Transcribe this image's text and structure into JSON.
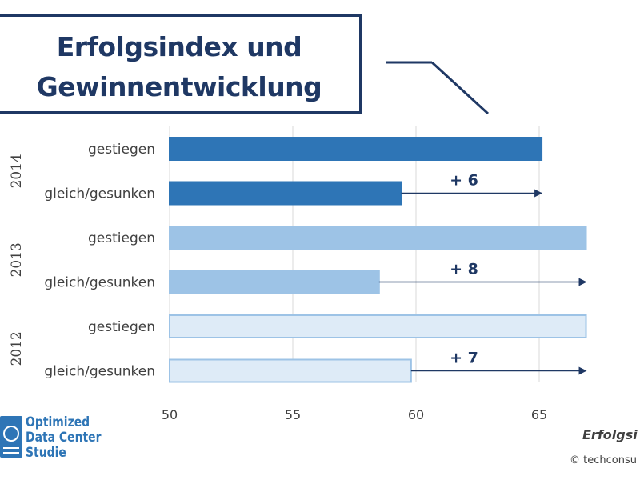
{
  "title": {
    "line1": "Erfolgsindex und",
    "line2": "Gewinnentwicklung"
  },
  "chart_data": {
    "type": "bar",
    "orientation": "horizontal",
    "xlim": [
      50,
      67
    ],
    "xticks": [
      "50",
      "55",
      "60",
      "65"
    ],
    "grid": true,
    "groups": [
      {
        "label": "2014",
        "bars": [
          {
            "category": "gestiegen",
            "value": 65.1
          },
          {
            "category": "gleich/gesunken",
            "value": 59.4
          }
        ],
        "annotation": {
          "label": "+ 6",
          "from": 59.4,
          "to": 65.1
        },
        "color": "#2e75b6",
        "border": "#2e75b6"
      },
      {
        "label": "2013",
        "bars": [
          {
            "category": "gestiegen",
            "value": 66.9
          },
          {
            "category": "gleich/gesunken",
            "value": 58.5
          }
        ],
        "annotation": {
          "label": "+ 8",
          "from": 58.5,
          "to": 66.9
        },
        "color": "#9dc3e6",
        "border": "#9dc3e6"
      },
      {
        "label": "2012",
        "bars": [
          {
            "category": "gestiegen",
            "value": 66.9
          },
          {
            "category": "gleich/gesunken",
            "value": 59.8
          }
        ],
        "annotation": {
          "label": "+ 7",
          "from": 59.8,
          "to": 66.9
        },
        "color": "#deebf7",
        "border": "#9dc3e6"
      }
    ]
  },
  "logo": {
    "line1": "Optimized",
    "line2": "Data Center",
    "line3": "Studie",
    "icon": "data-center-logo-icon",
    "color": "#2e75b6"
  },
  "footer": {
    "title": "Erfolgsi",
    "copyright": "© techconsu"
  },
  "colors": {
    "title": "#1f3864",
    "annotation": "#1f3864",
    "grid": "#d9d9d9"
  }
}
